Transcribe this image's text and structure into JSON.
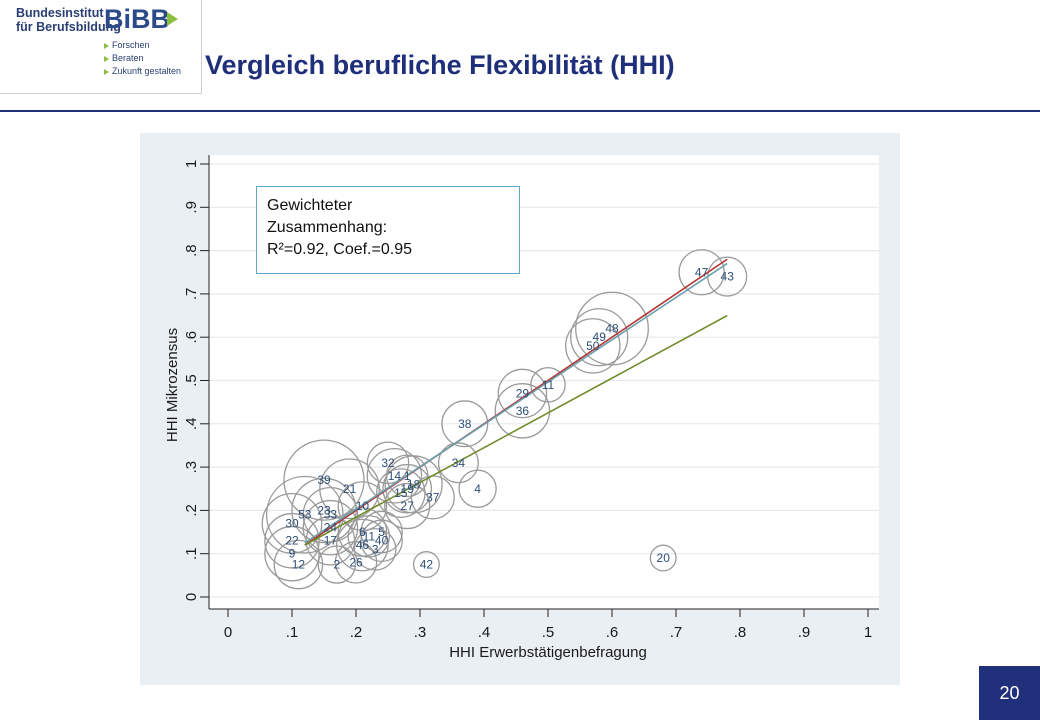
{
  "logo": {
    "name_line1": "Bundesinstitut",
    "name_line2": "für Berufsbildung",
    "brand": "BiBB",
    "taglines": [
      "Forschen",
      "Beraten",
      "Zukunft gestalten"
    ]
  },
  "slide": {
    "title": "Vergleich berufliche Flexibilität (HHI)",
    "page_number": "20"
  },
  "annotation": {
    "lines": [
      "Gewichteter",
      "Zusammenhang:",
      "R²=0.92, Coef.=0.95"
    ]
  },
  "colors": {
    "title": "#1f2f7a",
    "circle": "#9a9a9a",
    "label": "#2e4f78",
    "fit_red": "#b5342f",
    "fit_blue": "#6b9fb0",
    "fit_green": "#6e8a28",
    "chart_bg": "#e9eff3"
  },
  "chart_data": {
    "type": "scatter",
    "title": "",
    "xlabel": "HHI Erwerbstätigenbefragung",
    "ylabel": "HHI Mikrozensus",
    "xlim": [
      0,
      1
    ],
    "ylim": [
      0,
      1
    ],
    "xticks": [
      "0",
      ".1",
      ".2",
      ".3",
      ".4",
      ".5",
      ".6",
      ".7",
      ".8",
      ".9",
      "1"
    ],
    "yticks": [
      "0",
      ".1",
      ".2",
      ".3",
      ".4",
      ".5",
      ".6",
      ".7",
      ".8",
      ".9",
      "1"
    ],
    "grid": true,
    "points": [
      {
        "label": "47",
        "x": 0.74,
        "y": 0.75,
        "w": 0.25
      },
      {
        "label": "43",
        "x": 0.78,
        "y": 0.74,
        "w": 0.17
      },
      {
        "label": "48",
        "x": 0.6,
        "y": 0.62,
        "w": 0.8
      },
      {
        "label": "49",
        "x": 0.58,
        "y": 0.6,
        "w": 0.45
      },
      {
        "label": "50",
        "x": 0.57,
        "y": 0.58,
        "w": 0.4
      },
      {
        "label": "11",
        "x": 0.5,
        "y": 0.49,
        "w": 0.12
      },
      {
        "label": "29",
        "x": 0.46,
        "y": 0.47,
        "w": 0.3
      },
      {
        "label": "36",
        "x": 0.46,
        "y": 0.43,
        "w": 0.4
      },
      {
        "label": "38",
        "x": 0.37,
        "y": 0.4,
        "w": 0.26
      },
      {
        "label": "34",
        "x": 0.36,
        "y": 0.31,
        "w": 0.18
      },
      {
        "label": "4",
        "x": 0.39,
        "y": 0.25,
        "w": 0.15
      },
      {
        "label": "32",
        "x": 0.25,
        "y": 0.31,
        "w": 0.2
      },
      {
        "label": "14",
        "x": 0.26,
        "y": 0.28,
        "w": 0.4
      },
      {
        "label": "1",
        "x": 0.28,
        "y": 0.28,
        "w": 0.2
      },
      {
        "label": "18",
        "x": 0.29,
        "y": 0.26,
        "w": 0.45
      },
      {
        "label": "19",
        "x": 0.28,
        "y": 0.25,
        "w": 0.3
      },
      {
        "label": "15",
        "x": 0.27,
        "y": 0.24,
        "w": 0.3
      },
      {
        "label": "37",
        "x": 0.32,
        "y": 0.23,
        "w": 0.22
      },
      {
        "label": "27",
        "x": 0.28,
        "y": 0.21,
        "w": 0.25
      },
      {
        "label": "39",
        "x": 0.15,
        "y": 0.27,
        "w": 1.0
      },
      {
        "label": "21",
        "x": 0.19,
        "y": 0.25,
        "w": 0.5
      },
      {
        "label": "10",
        "x": 0.21,
        "y": 0.21,
        "w": 0.3
      },
      {
        "label": "23",
        "x": 0.15,
        "y": 0.2,
        "w": 0.6
      },
      {
        "label": "33",
        "x": 0.16,
        "y": 0.19,
        "w": 0.4
      },
      {
        "label": "53",
        "x": 0.12,
        "y": 0.19,
        "w": 0.9
      },
      {
        "label": "30",
        "x": 0.1,
        "y": 0.17,
        "w": 0.5
      },
      {
        "label": "24",
        "x": 0.16,
        "y": 0.16,
        "w": 0.4
      },
      {
        "label": "6",
        "x": 0.21,
        "y": 0.15,
        "w": 0.3
      },
      {
        "label": "11",
        "x": 0.22,
        "y": 0.14,
        "w": 0.2
      },
      {
        "label": "5",
        "x": 0.24,
        "y": 0.15,
        "w": 0.2
      },
      {
        "label": "40",
        "x": 0.24,
        "y": 0.13,
        "w": 0.2
      },
      {
        "label": "46",
        "x": 0.21,
        "y": 0.12,
        "w": 0.35
      },
      {
        "label": "3",
        "x": 0.23,
        "y": 0.11,
        "w": 0.2
      },
      {
        "label": "17",
        "x": 0.16,
        "y": 0.13,
        "w": 0.3
      },
      {
        "label": "22",
        "x": 0.1,
        "y": 0.13,
        "w": 0.4
      },
      {
        "label": "9",
        "x": 0.1,
        "y": 0.1,
        "w": 0.4
      },
      {
        "label": "12",
        "x": 0.11,
        "y": 0.075,
        "w": 0.3
      },
      {
        "label": "2",
        "x": 0.17,
        "y": 0.075,
        "w": 0.15
      },
      {
        "label": "26",
        "x": 0.2,
        "y": 0.08,
        "w": 0.2
      },
      {
        "label": "42",
        "x": 0.31,
        "y": 0.075,
        "w": 0.05
      },
      {
        "label": "20",
        "x": 0.68,
        "y": 0.09,
        "w": 0.05
      }
    ],
    "fit_lines": [
      {
        "color": "#b5342f",
        "x": [
          0.12,
          0.78
        ],
        "y": [
          0.12,
          0.78
        ]
      },
      {
        "color": "#6b9fb0",
        "x": [
          0.12,
          0.78
        ],
        "y": [
          0.125,
          0.77
        ]
      },
      {
        "color": "#6e8a28",
        "x": [
          0.12,
          0.78
        ],
        "y": [
          0.12,
          0.65
        ]
      }
    ]
  }
}
